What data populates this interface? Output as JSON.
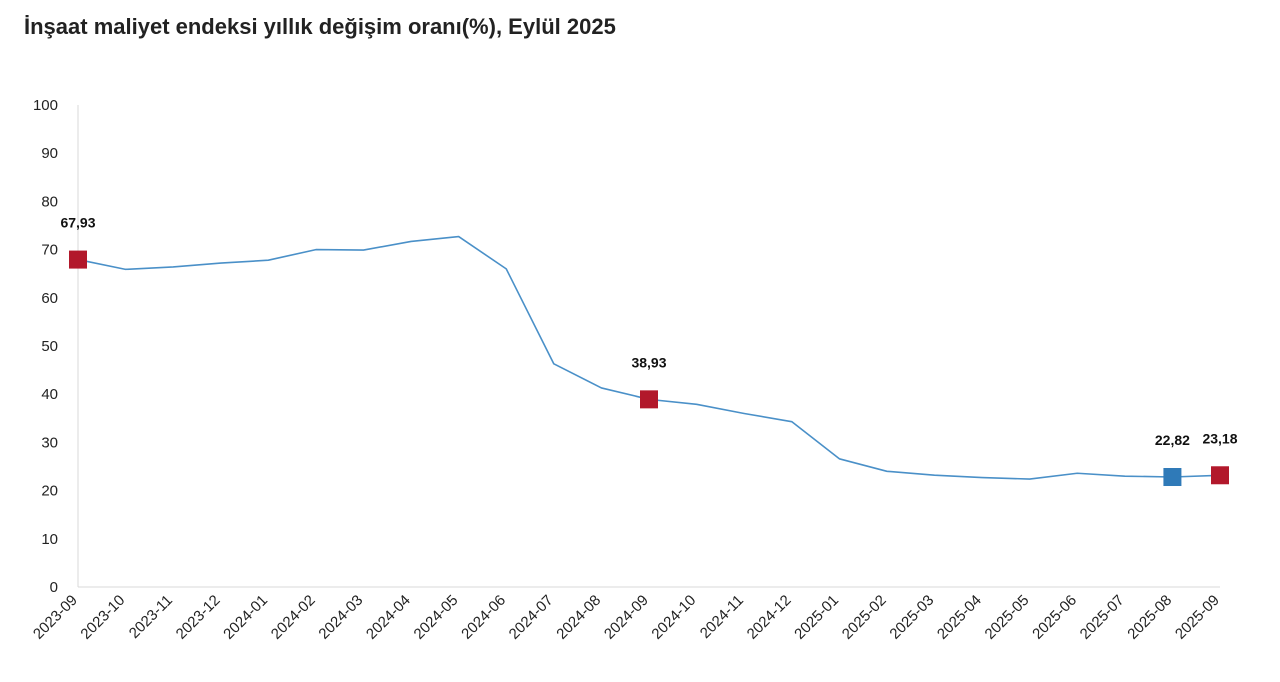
{
  "page": {
    "title": "İnşaat maliyet endeksi yıllık değişim oranı(%), Eylül 2025"
  },
  "chart_data": {
    "type": "line",
    "title": "İnşaat maliyet endeksi yıllık değişim oranı(%), Eylül 2025",
    "xlabel": "",
    "ylabel": "",
    "ylim": [
      0,
      100
    ],
    "yticks": [
      0,
      10,
      20,
      30,
      40,
      50,
      60,
      70,
      80,
      90,
      100
    ],
    "grid": false,
    "categories": [
      "2023-09",
      "2023-10",
      "2023-11",
      "2023-12",
      "2024-01",
      "2024-02",
      "2024-03",
      "2024-04",
      "2024-05",
      "2024-06",
      "2024-07",
      "2024-08",
      "2024-09",
      "2024-10",
      "2024-11",
      "2024-12",
      "2025-01",
      "2025-02",
      "2025-03",
      "2025-04",
      "2025-05",
      "2025-06",
      "2025-07",
      "2025-08",
      "2025-09"
    ],
    "series": [
      {
        "values": [
          67.93,
          65.9,
          66.4,
          67.2,
          67.8,
          70.0,
          69.9,
          71.7,
          72.7,
          66.0,
          46.3,
          41.3,
          38.93,
          37.9,
          36.0,
          34.3,
          26.6,
          24.0,
          23.2,
          22.7,
          22.4,
          23.6,
          23.0,
          22.82,
          23.18
        ],
        "color": "#4a90c8"
      }
    ],
    "highlighted_points": [
      {
        "category": "2023-09",
        "value": 67.93,
        "label": "67,93",
        "color": "#b2182b"
      },
      {
        "category": "2024-09",
        "value": 38.93,
        "label": "38,93",
        "color": "#b2182b"
      },
      {
        "category": "2025-08",
        "value": 22.82,
        "label": "22,82",
        "color": "#2f7ab8"
      },
      {
        "category": "2025-09",
        "value": 23.18,
        "label": "23,18",
        "color": "#b2182b"
      }
    ]
  }
}
